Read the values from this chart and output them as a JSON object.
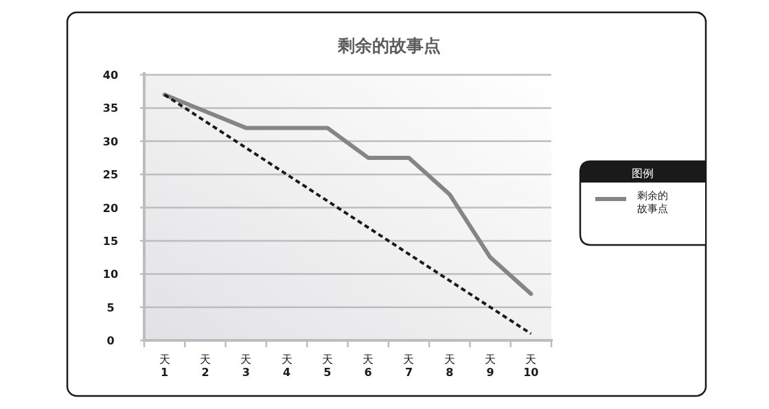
{
  "chart_data": {
    "type": "line",
    "title": "剩余的故事点",
    "categories": [
      "天 1",
      "天 2",
      "天 3",
      "天 4",
      "天 5",
      "天 6",
      "天 7",
      "天 8",
      "天 9",
      "天 10"
    ],
    "series": [
      {
        "name": "剩余的故事点",
        "color": "#858587",
        "values": [
          37,
          34.5,
          32,
          32,
          32,
          27.5,
          27.5,
          22,
          12.5,
          7
        ]
      },
      {
        "color": "#1a1a1a",
        "line_style": "dashed",
        "values": [
          37,
          33,
          29,
          25,
          21,
          17,
          13,
          9,
          5,
          1
        ]
      }
    ],
    "ylim": [
      0,
      40
    ],
    "yticks": [
      0,
      5,
      10,
      15,
      20,
      25,
      30,
      35,
      40
    ],
    "grid": "y",
    "legend": "right",
    "legend_title": "图例"
  }
}
